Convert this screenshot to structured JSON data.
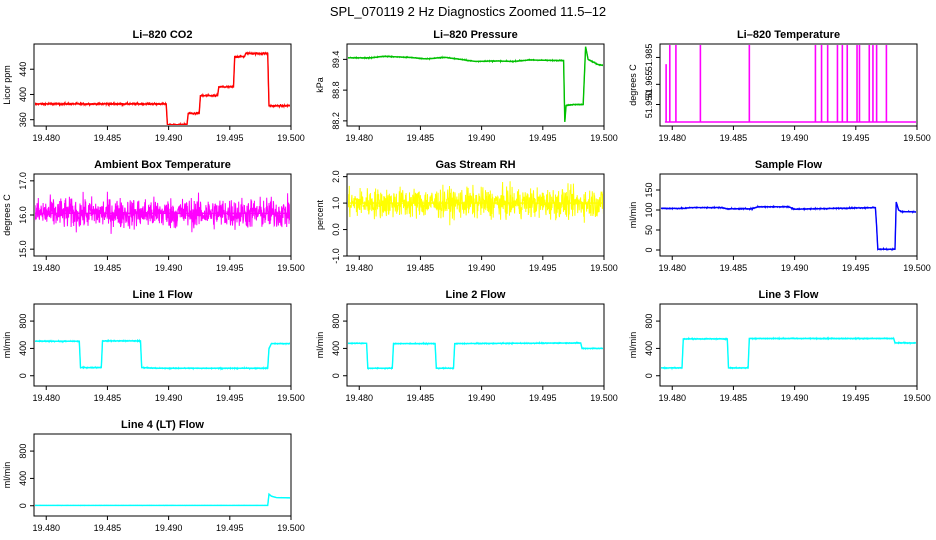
{
  "figure": {
    "title": "SPL_070119  2 Hz Diagnostics Zoomed 11.5–12"
  },
  "colors": {
    "red": "#ff0000",
    "green": "#00c000",
    "magenta": "#ff00ff",
    "yellow": "#ffff00",
    "blue": "#0000ff",
    "cyan": "#00ffff"
  },
  "chart_data": [
    {
      "type": "line",
      "title": "Li–820 CO2",
      "ylabel": "Licor ppm",
      "xlim": [
        19.479,
        19.5
      ],
      "ylim": [
        350,
        480
      ],
      "xticks": [
        "19.480",
        "19.485",
        "19.490",
        "19.495",
        "19.500"
      ],
      "yticks": [
        "360",
        "400",
        "440"
      ],
      "color": "red",
      "series": [
        {
          "x": [
            19.479,
            19.48,
            19.485,
            19.4898,
            19.4899,
            19.4915,
            19.4916,
            19.4925,
            19.4926,
            19.494,
            19.4941,
            19.4953,
            19.4954,
            19.4962,
            19.4963,
            19.4981,
            19.4982,
            19.5
          ],
          "y": [
            385,
            385,
            385,
            385,
            352,
            352,
            370,
            370,
            398,
            398,
            412,
            412,
            460,
            460,
            465,
            465,
            382,
            382
          ]
        }
      ],
      "noise": 1.5
    },
    {
      "type": "line",
      "title": "Li–820 Pressure",
      "ylabel": "kPa",
      "xlim": [
        19.479,
        19.5
      ],
      "ylim": [
        88.1,
        89.7
      ],
      "xticks": [
        "19.480",
        "19.485",
        "19.490",
        "19.495",
        "19.500"
      ],
      "yticks": [
        "88.2",
        "88.8",
        "89.4"
      ],
      "color": "green",
      "series": [
        {
          "x": [
            19.479,
            19.481,
            19.482,
            19.484,
            19.4855,
            19.487,
            19.4895,
            19.491,
            19.4925,
            19.494,
            19.4955,
            19.4967,
            19.4968,
            19.4969,
            19.4975,
            19.4983,
            19.4985,
            19.4987,
            19.4995,
            19.5
          ],
          "y": [
            89.43,
            89.43,
            89.46,
            89.44,
            89.41,
            89.44,
            89.36,
            89.37,
            89.36,
            89.39,
            89.38,
            89.38,
            88.18,
            88.5,
            88.52,
            88.52,
            89.65,
            89.4,
            89.3,
            89.28
          ]
        }
      ],
      "noise": 0.008
    },
    {
      "type": "spikes",
      "title": "Li–820 Temperature",
      "ylabel": "degrees C",
      "xlim": [
        19.479,
        19.5
      ],
      "ylim": [
        51.934,
        51.995
      ],
      "xticks": [
        "19.480",
        "19.485",
        "19.490",
        "19.495",
        "19.500"
      ],
      "yticks": [
        "51.950",
        "51.965",
        "51.985"
      ],
      "color": "magenta",
      "baseline": 51.937,
      "spikes": [
        {
          "x": 19.4795,
          "y": 51.98
        },
        {
          "x": 19.4798,
          "y": 51.995
        },
        {
          "x": 19.4803,
          "y": 51.995
        },
        {
          "x": 19.4823,
          "y": 51.995
        },
        {
          "x": 19.4863,
          "y": 51.995
        },
        {
          "x": 19.4917,
          "y": 51.995
        },
        {
          "x": 19.4922,
          "y": 51.995
        },
        {
          "x": 19.4927,
          "y": 51.995
        },
        {
          "x": 19.4935,
          "y": 51.995
        },
        {
          "x": 19.4939,
          "y": 51.995
        },
        {
          "x": 19.4943,
          "y": 51.995
        },
        {
          "x": 19.4951,
          "y": 51.995
        },
        {
          "x": 19.4953,
          "y": 51.995
        },
        {
          "x": 19.4961,
          "y": 51.995
        },
        {
          "x": 19.4964,
          "y": 51.995
        },
        {
          "x": 19.4967,
          "y": 51.995
        },
        {
          "x": 19.4975,
          "y": 51.995
        }
      ]
    },
    {
      "type": "line",
      "title": "Ambient Box Temperature",
      "ylabel": "degrees C",
      "xlim": [
        19.479,
        19.5
      ],
      "ylim": [
        14.8,
        17.2
      ],
      "xticks": [
        "19.480",
        "19.485",
        "19.490",
        "19.495",
        "19.500"
      ],
      "yticks": [
        "15.0",
        "16.0",
        "17.0"
      ],
      "color": "magenta",
      "series": [
        {
          "x": [
            19.479,
            19.5
          ],
          "y": [
            16.05,
            16.05
          ]
        }
      ],
      "noise": 0.32
    },
    {
      "type": "line",
      "title": "Gas Stream RH",
      "ylabel": "percent",
      "xlim": [
        19.479,
        19.5
      ],
      "ylim": [
        -1.0,
        2.1
      ],
      "xticks": [
        "19.480",
        "19.485",
        "19.490",
        "19.495",
        "19.500"
      ],
      "yticks": [
        "-1.0",
        "0.0",
        "1.0",
        "2.0"
      ],
      "color": "yellow",
      "series": [
        {
          "x": [
            19.479,
            19.5
          ],
          "y": [
            1.0,
            1.0
          ]
        }
      ],
      "noise": 0.4
    },
    {
      "type": "line",
      "title": "Sample Flow",
      "ylabel": "ml/min",
      "xlim": [
        19.479,
        19.5
      ],
      "ylim": [
        -15,
        190
      ],
      "xticks": [
        "19.480",
        "19.485",
        "19.490",
        "19.495",
        "19.500"
      ],
      "yticks": [
        "0",
        "50",
        "100",
        "150"
      ],
      "color": "blue",
      "series": [
        {
          "x": [
            19.479,
            19.481,
            19.4815,
            19.484,
            19.4845,
            19.4865,
            19.487,
            19.4895,
            19.49,
            19.4966,
            19.4967,
            19.4968,
            19.4982,
            19.4983,
            19.4985,
            19.4987,
            19.5
          ],
          "y": [
            104,
            104,
            106,
            106,
            103,
            103,
            108,
            108,
            102,
            106,
            60,
            2,
            2,
            120,
            100,
            96,
            95
          ]
        }
      ],
      "noise": 1.2
    },
    {
      "type": "line",
      "title": "Line 1 Flow",
      "ylabel": "ml/min",
      "xlim": [
        19.479,
        19.5
      ],
      "ylim": [
        -150,
        1050
      ],
      "xticks": [
        "19.480",
        "19.485",
        "19.490",
        "19.495",
        "19.500"
      ],
      "yticks": [
        "0",
        "400",
        "800"
      ],
      "color": "cyan",
      "series": [
        {
          "x": [
            19.479,
            19.4827,
            19.4828,
            19.4845,
            19.4846,
            19.4877,
            19.4878,
            19.489,
            19.4981,
            19.4982,
            19.4984,
            19.5
          ],
          "y": [
            505,
            505,
            120,
            120,
            510,
            510,
            120,
            110,
            110,
            400,
            470,
            470
          ]
        }
      ],
      "noise": 6
    },
    {
      "type": "line",
      "title": "Line 2 Flow",
      "ylabel": "ml/min",
      "xlim": [
        19.479,
        19.5
      ],
      "ylim": [
        -150,
        1050
      ],
      "xticks": [
        "19.480",
        "19.485",
        "19.490",
        "19.495",
        "19.500"
      ],
      "yticks": [
        "0",
        "400",
        "800"
      ],
      "color": "cyan",
      "series": [
        {
          "x": [
            19.479,
            19.4806,
            19.4807,
            19.4827,
            19.4828,
            19.4862,
            19.4863,
            19.4877,
            19.4878,
            19.4981,
            19.4982,
            19.5
          ],
          "y": [
            475,
            475,
            110,
            110,
            470,
            470,
            110,
            110,
            470,
            480,
            400,
            400
          ]
        }
      ],
      "noise": 6
    },
    {
      "type": "line",
      "title": "Line 3 Flow",
      "ylabel": "ml/min",
      "xlim": [
        19.479,
        19.5
      ],
      "ylim": [
        -150,
        1050
      ],
      "xticks": [
        "19.480",
        "19.485",
        "19.490",
        "19.495",
        "19.500"
      ],
      "yticks": [
        "0",
        "400",
        "800"
      ],
      "color": "cyan",
      "series": [
        {
          "x": [
            19.479,
            19.4808,
            19.4809,
            19.4845,
            19.4846,
            19.4862,
            19.4863,
            19.4981,
            19.4982,
            19.5
          ],
          "y": [
            115,
            115,
            540,
            540,
            115,
            115,
            545,
            545,
            480,
            480
          ]
        }
      ],
      "noise": 6
    },
    {
      "type": "line",
      "title": "Line 4 (LT) Flow",
      "ylabel": "ml/min",
      "xlim": [
        19.479,
        19.5
      ],
      "ylim": [
        -150,
        1050
      ],
      "xticks": [
        "19.480",
        "19.485",
        "19.490",
        "19.495",
        "19.500"
      ],
      "yticks": [
        "0",
        "400",
        "800"
      ],
      "color": "cyan",
      "series": [
        {
          "x": [
            19.479,
            19.4981,
            19.4982,
            19.4984,
            19.4988,
            19.5
          ],
          "y": [
            5,
            5,
            170,
            140,
            120,
            115
          ]
        }
      ],
      "noise": 1.5
    }
  ]
}
